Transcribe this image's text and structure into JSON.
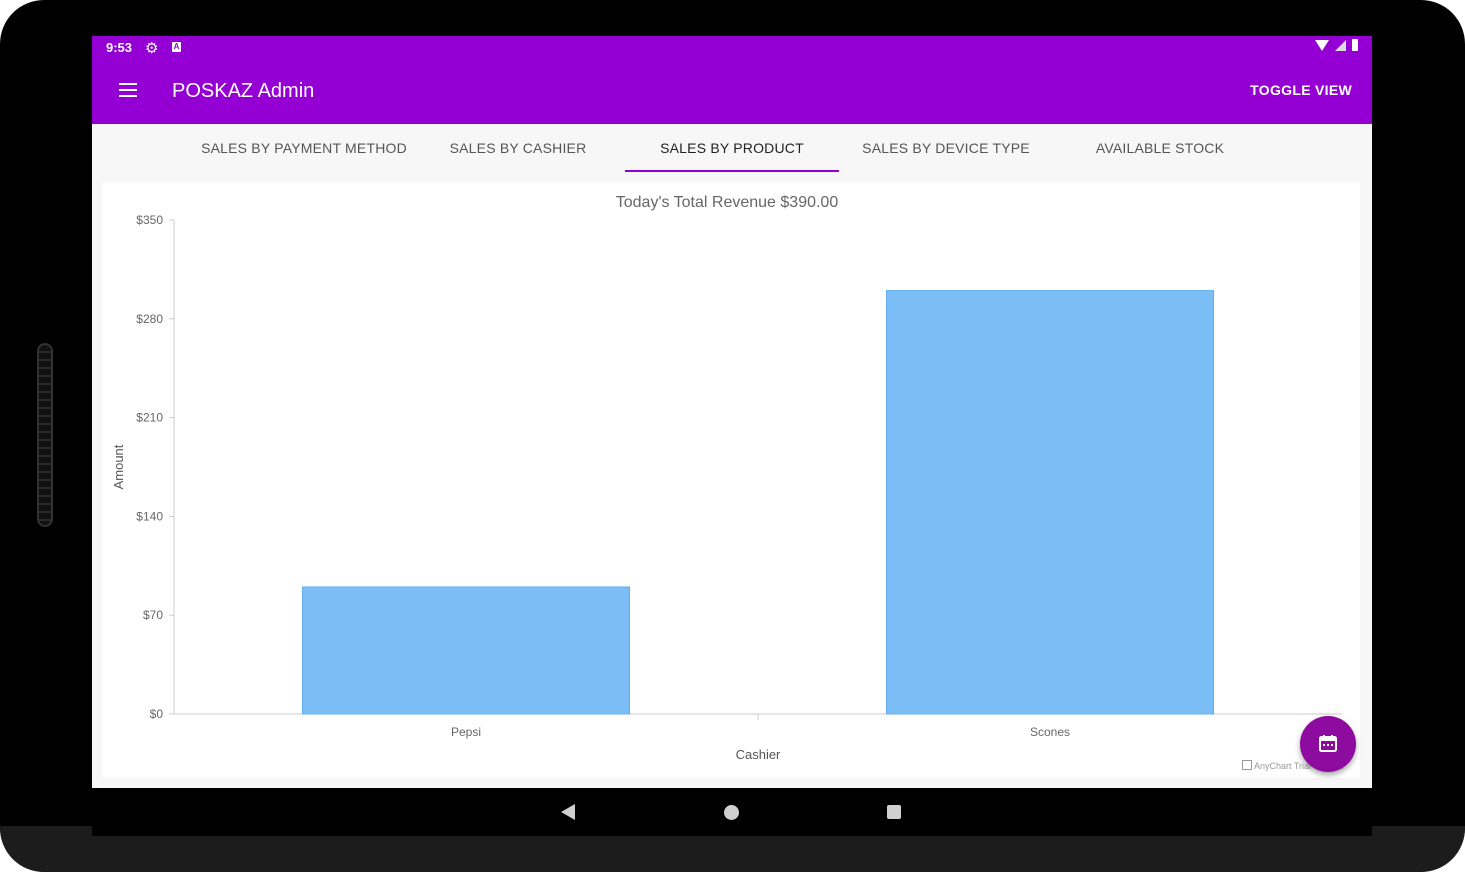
{
  "status_bar": {
    "time": "9:53",
    "icons": [
      "gear-icon",
      "a-notification-icon",
      "wifi-icon",
      "signal-icon",
      "battery-icon"
    ]
  },
  "app_bar": {
    "title": "POSKAZ Admin",
    "action_label": "TOGGLE VIEW",
    "background_color": "#9400d3"
  },
  "tabs": [
    {
      "label": "SALES BY PAYMENT METHOD",
      "active": false
    },
    {
      "label": "SALES BY CASHIER",
      "active": false
    },
    {
      "label": "SALES BY PRODUCT",
      "active": true
    },
    {
      "label": "SALES BY DEVICE TYPE",
      "active": false
    },
    {
      "label": "AVAILABLE STOCK",
      "active": false
    }
  ],
  "chart_data": {
    "type": "bar",
    "title": "Today's Total Revenue $390.00",
    "categories": [
      "Pepsi",
      "Scones"
    ],
    "series": [
      {
        "values": [
          90,
          300
        ],
        "color": "#7bbef5"
      }
    ],
    "xlabel": "Cashier",
    "ylabel": "Amount",
    "ylim": [
      0,
      350
    ],
    "yticks": [
      "$0",
      "$70",
      "$140",
      "$210",
      "$280",
      "$350"
    ],
    "ytick_values": [
      0,
      70,
      140,
      210,
      280,
      350
    ],
    "grid": false,
    "credits": "AnyChart Trial Version"
  },
  "fab": {
    "icon": "calendar-icon"
  },
  "nav_bar": {
    "icons": [
      "back-icon",
      "home-icon",
      "recents-icon"
    ]
  }
}
